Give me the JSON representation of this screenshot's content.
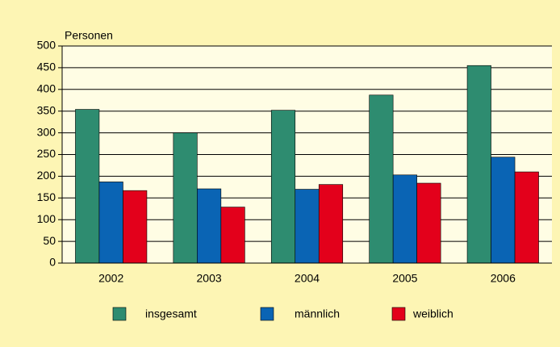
{
  "chart_data": {
    "type": "bar",
    "y_label": "Personen",
    "categories": [
      "2002",
      "2003",
      "2004",
      "2005",
      "2006"
    ],
    "series": [
      {
        "name": "insgesamt",
        "color": "#2e8c70",
        "values": [
          354,
          300,
          352,
          387,
          455
        ]
      },
      {
        "name": "männlich",
        "color": "#0a64b4",
        "values": [
          187,
          171,
          170,
          203,
          244
        ]
      },
      {
        "name": "weiblich",
        "color": "#e3001b",
        "values": [
          167,
          129,
          181,
          184,
          210
        ]
      }
    ],
    "ylim": [
      0,
      500
    ],
    "yticks": [
      0,
      50,
      100,
      150,
      200,
      250,
      300,
      350,
      400,
      450,
      500
    ],
    "grid": true
  }
}
